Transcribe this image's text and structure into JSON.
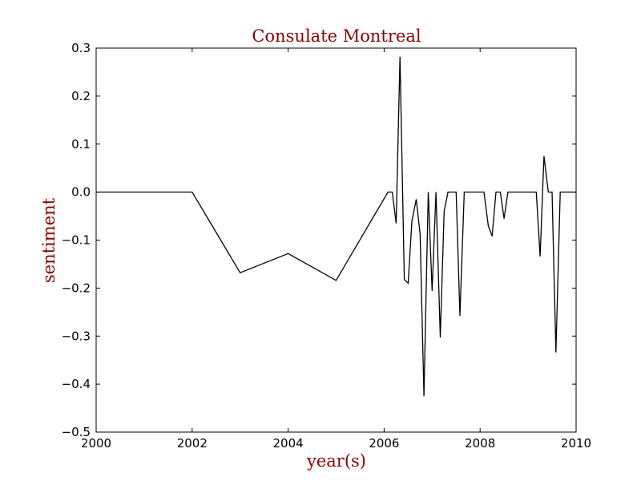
{
  "chart_data": {
    "type": "line",
    "title": "Consulate Montreal",
    "xlabel": "year(s)",
    "ylabel": "sentiment",
    "xlim": [
      2000,
      2010
    ],
    "ylim": [
      -0.5,
      0.3
    ],
    "x_ticks": [
      2000,
      2002,
      2004,
      2006,
      2008,
      2010
    ],
    "y_ticks": [
      0.3,
      0.2,
      0.1,
      0.0,
      -0.1,
      -0.2,
      -0.3,
      -0.4,
      -0.5
    ],
    "x_tick_labels": [
      "2000",
      "2002",
      "2004",
      "2006",
      "2008",
      "2010"
    ],
    "y_tick_labels": [
      "0.3",
      "0.2",
      "0.1",
      "0.0",
      "−0.1",
      "−0.2",
      "−0.3",
      "−0.4",
      "−0.5"
    ],
    "grid": false,
    "title_color": "#8b0000",
    "line_color": "#000000",
    "series": [
      {
        "x": [
          2000.0,
          2002.0,
          2003.0,
          2004.0,
          2005.0,
          2006.08,
          2006.17,
          2006.25,
          2006.33,
          2006.42,
          2006.5,
          2006.58,
          2006.67,
          2006.75,
          2006.83,
          2006.92,
          2007.0,
          2007.08,
          2007.17,
          2007.25,
          2007.33,
          2007.42,
          2007.5,
          2007.58,
          2007.67,
          2007.75,
          2007.83,
          2007.92,
          2008.0,
          2008.08,
          2008.17,
          2008.25,
          2008.33,
          2008.42,
          2008.5,
          2008.58,
          2008.67,
          2008.75,
          2008.83,
          2008.92,
          2009.0,
          2009.08,
          2009.17,
          2009.25,
          2009.33,
          2009.42,
          2009.5,
          2009.58,
          2009.67,
          2009.75,
          2009.83,
          2009.92,
          2010.0
        ],
        "y": [
          0.0,
          0.0,
          -0.168,
          -0.128,
          -0.184,
          0.0,
          0.0,
          -0.065,
          0.282,
          -0.182,
          -0.19,
          -0.06,
          -0.015,
          -0.087,
          -0.425,
          0.0,
          -0.206,
          0.0,
          -0.303,
          -0.04,
          0.0,
          0.0,
          0.0,
          -0.258,
          0.0,
          0.0,
          0.0,
          0.0,
          0.0,
          0.0,
          -0.07,
          -0.092,
          0.0,
          0.0,
          -0.055,
          0.0,
          0.0,
          0.0,
          0.0,
          0.0,
          0.0,
          0.0,
          0.0,
          -0.134,
          0.075,
          0.0,
          0.0,
          -0.334,
          0.0,
          0.0,
          0.0,
          0.0,
          0.0
        ]
      }
    ]
  }
}
